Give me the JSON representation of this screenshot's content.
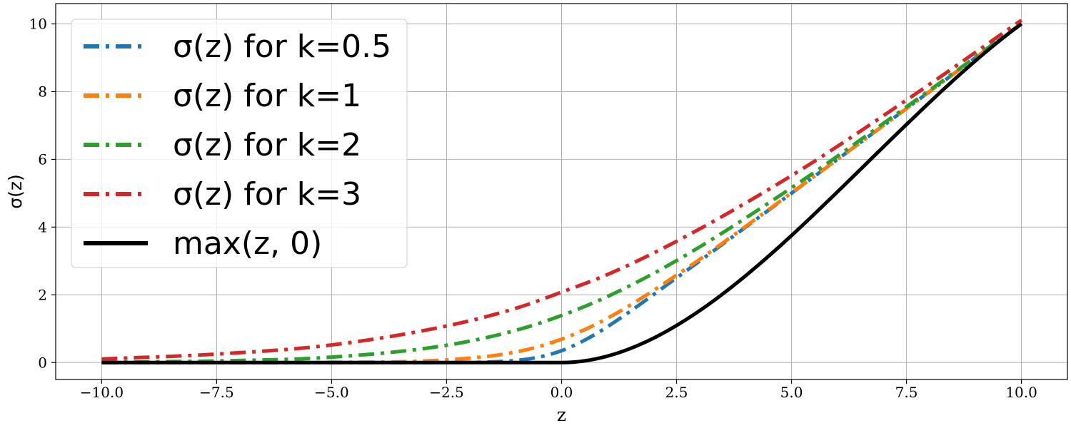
{
  "chart_data": {
    "type": "line",
    "xlabel": "z",
    "ylabel": "σ(z)",
    "xlim": [
      -11.0,
      11.0
    ],
    "ylim": [
      -0.5,
      10.6
    ],
    "x_ticks": [
      -10.0,
      -7.5,
      -5.0,
      -2.5,
      0.0,
      2.5,
      5.0,
      7.5,
      10.0
    ],
    "x_tick_labels": [
      "−10.0",
      "−7.5",
      "−5.0",
      "−2.5",
      "0.0",
      "2.5",
      "5.0",
      "7.5",
      "10.0"
    ],
    "y_ticks": [
      0,
      2,
      4,
      6,
      8,
      10
    ],
    "y_tick_labels": [
      "0",
      "2",
      "4",
      "6",
      "8",
      "10"
    ],
    "grid": true,
    "legend_position": "top-left",
    "series": [
      {
        "name": "σ(z) for k=0.5",
        "color": "#1f77b4",
        "style": "dashdot",
        "x": [
          -10,
          -7.5,
          -5,
          -2.5,
          -1,
          -0.5,
          0,
          0.5,
          1,
          2.5,
          5,
          7.5,
          10
        ],
        "y": [
          0.0,
          0.0,
          0.0,
          0.003,
          0.06,
          0.16,
          0.35,
          0.66,
          1.06,
          2.5,
          5.0,
          7.5,
          10.0
        ]
      },
      {
        "name": "σ(z) for k=1",
        "color": "#ff7f0e",
        "style": "dashdot",
        "x": [
          -10,
          -7.5,
          -5,
          -2.5,
          -1,
          0,
          1,
          2.5,
          5,
          7.5,
          10
        ],
        "y": [
          0.0,
          0.001,
          0.007,
          0.08,
          0.31,
          0.69,
          1.31,
          2.58,
          5.01,
          7.5,
          10.0
        ]
      },
      {
        "name": "σ(z) for k=2",
        "color": "#2ca02c",
        "style": "dashdot",
        "x": [
          -10,
          -7.5,
          -5,
          -2.5,
          -1,
          0,
          1,
          2.5,
          5,
          7.5,
          10
        ],
        "y": [
          0.013,
          0.048,
          0.16,
          0.51,
          0.95,
          1.39,
          1.95,
          3.01,
          5.16,
          7.55,
          10.01
        ]
      },
      {
        "name": "σ(z) for k=3",
        "color": "#d62728",
        "style": "dashdot",
        "x": [
          -10,
          -7.5,
          -5,
          -2.5,
          -1,
          0,
          1,
          2.5,
          5,
          7.5,
          10
        ],
        "y": [
          0.106,
          0.25,
          0.52,
          1.08,
          1.6,
          2.08,
          2.6,
          3.58,
          5.52,
          7.75,
          10.11
        ]
      },
      {
        "name": "max(z, 0)",
        "color": "#000000",
        "style": "solid",
        "x": [
          -10,
          0,
          10
        ],
        "y": [
          0,
          0,
          10
        ]
      }
    ]
  }
}
